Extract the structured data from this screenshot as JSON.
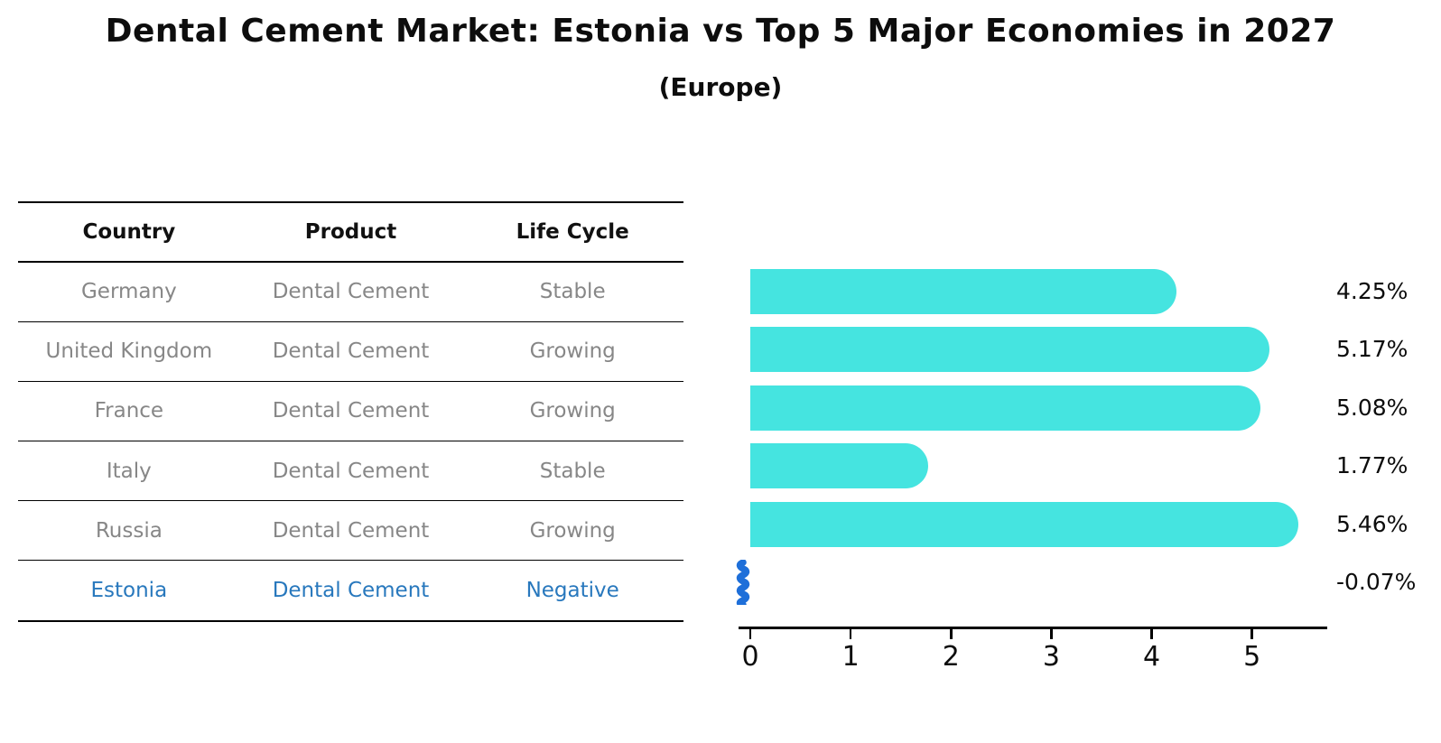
{
  "title": "Dental Cement Market: Estonia vs Top 5 Major Economies in 2027",
  "subtitle": "(Europe)",
  "table": {
    "headers": [
      "Country",
      "Product",
      "Life Cycle"
    ],
    "rows": [
      {
        "country": "Germany",
        "product": "Dental Cement",
        "life_cycle": "Stable",
        "highlight": false
      },
      {
        "country": "United Kingdom",
        "product": "Dental Cement",
        "life_cycle": "Growing",
        "highlight": false
      },
      {
        "country": "France",
        "product": "Dental Cement",
        "life_cycle": "Growing",
        "highlight": false
      },
      {
        "country": "Italy",
        "product": "Dental Cement",
        "life_cycle": "Stable",
        "highlight": false
      },
      {
        "country": "Russia",
        "product": "Dental Cement",
        "life_cycle": "Growing",
        "highlight": false
      },
      {
        "country": "Estonia",
        "product": "Dental Cement",
        "life_cycle": "Negative",
        "highlight": true
      }
    ]
  },
  "chart_data": {
    "type": "bar",
    "orientation": "horizontal",
    "title": "",
    "xlabel": "",
    "ylabel": "",
    "categories": [
      "Germany",
      "United Kingdom",
      "France",
      "Italy",
      "Russia",
      "Estonia"
    ],
    "values": [
      4.25,
      5.17,
      5.08,
      1.77,
      5.46,
      -0.07
    ],
    "value_labels": [
      "4.25%",
      "5.17%",
      "5.08%",
      "1.77%",
      "5.46%",
      "-0.07%"
    ],
    "xticks": [
      "0",
      "1",
      "2",
      "3",
      "4",
      "5"
    ],
    "xtick_values": [
      0,
      1,
      2,
      3,
      4,
      5
    ],
    "xlim": [
      -0.117,
      5.75
    ],
    "grid": false,
    "legend": "none",
    "bar_color": "#45e4e0",
    "negative_bar_color": "#1e6fd9"
  },
  "colors": {
    "bar_cyan": "#45e4e0",
    "bar_negative_blue": "#1e6fd9",
    "highlight_text_blue": "#2878bd",
    "table_text_gray": "#878787",
    "axis_black": "#000000"
  }
}
